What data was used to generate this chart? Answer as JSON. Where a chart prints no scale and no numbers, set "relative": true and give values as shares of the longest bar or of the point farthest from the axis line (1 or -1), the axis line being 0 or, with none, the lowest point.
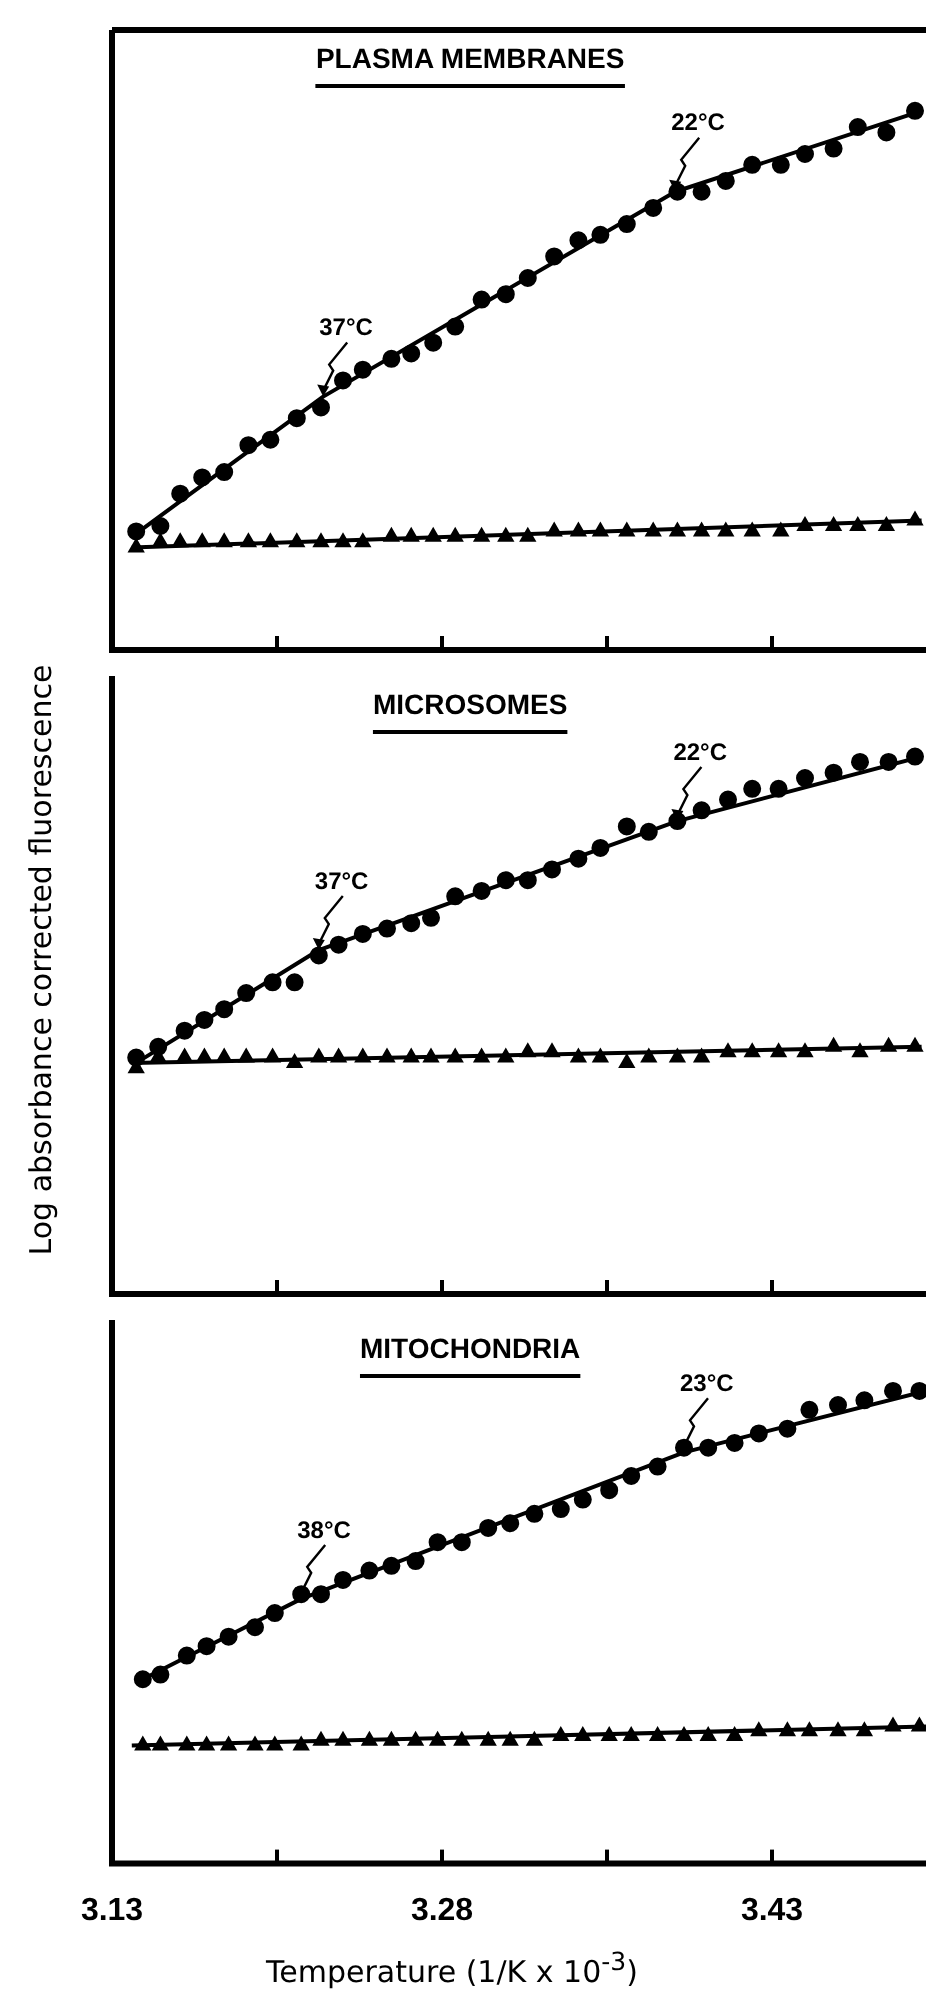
{
  "chart_data": [
    {
      "type": "scatter",
      "title": "PLASMA MEMBRANES",
      "relative": true,
      "xlim": [
        3.13,
        3.5
      ],
      "xticks": [
        3.13,
        3.205,
        3.28,
        3.355,
        3.43
      ],
      "tick_labels": false,
      "annotations": [
        {
          "text": "37°C",
          "x": 3.226,
          "y": 0.47
        },
        {
          "text": "22°C",
          "x": 3.386,
          "y": 0.85
        }
      ],
      "series": [
        {
          "type": "scatter",
          "marker": "circle",
          "color": "#000000",
          "x": [
            3.141,
            3.152,
            3.161,
            3.171,
            3.181,
            3.192,
            3.202,
            3.214,
            3.225,
            3.235,
            3.244,
            3.257,
            3.266,
            3.276,
            3.286,
            3.298,
            3.309,
            3.319,
            3.331,
            3.342,
            3.352,
            3.364,
            3.376,
            3.387,
            3.398,
            3.409,
            3.421,
            3.434,
            3.445,
            3.458,
            3.469,
            3.482,
            3.495
          ],
          "values": [
            0.22,
            0.23,
            0.29,
            0.32,
            0.33,
            0.38,
            0.39,
            0.43,
            0.45,
            0.5,
            0.52,
            0.54,
            0.55,
            0.57,
            0.6,
            0.65,
            0.66,
            0.69,
            0.73,
            0.76,
            0.77,
            0.79,
            0.82,
            0.85,
            0.85,
            0.87,
            0.9,
            0.9,
            0.92,
            0.93,
            0.97,
            0.96,
            1
          ]
        },
        {
          "type": "scatter",
          "marker": "triangle",
          "color": "#000000",
          "x": [
            3.141,
            3.152,
            3.161,
            3.171,
            3.181,
            3.192,
            3.202,
            3.214,
            3.225,
            3.235,
            3.244,
            3.257,
            3.266,
            3.276,
            3.286,
            3.298,
            3.309,
            3.319,
            3.331,
            3.342,
            3.352,
            3.364,
            3.376,
            3.387,
            3.398,
            3.409,
            3.421,
            3.434,
            3.445,
            3.458,
            3.469,
            3.482,
            3.495
          ],
          "values": [
            0.19,
            0.2,
            0.2,
            0.2,
            0.2,
            0.2,
            0.2,
            0.2,
            0.2,
            0.2,
            0.2,
            0.21,
            0.21,
            0.21,
            0.21,
            0.21,
            0.21,
            0.21,
            0.22,
            0.22,
            0.22,
            0.22,
            0.22,
            0.22,
            0.22,
            0.22,
            0.22,
            0.22,
            0.23,
            0.23,
            0.23,
            0.23,
            0.24
          ]
        },
        {
          "type": "line",
          "marker": "none",
          "color": "#000000",
          "x": [
            3.139,
            3.226,
            3.386,
            3.498
          ],
          "values": [
            0.21,
            0.47,
            0.85,
            1
          ]
        },
        {
          "type": "line",
          "marker": "none",
          "color": "#000000",
          "x": [
            3.139,
            3.498
          ],
          "values": [
            0.19,
            0.24
          ]
        }
      ]
    },
    {
      "type": "scatter",
      "title": "MICROSOMES",
      "ylabel": "Log absorbance corrected fluorescence",
      "relative": true,
      "xlim": [
        3.13,
        3.5
      ],
      "xticks": [
        3.13,
        3.205,
        3.28,
        3.355,
        3.43
      ],
      "tick_labels": false,
      "annotations": [
        {
          "text": "37°C",
          "x": 3.224,
          "y": 0.64
        },
        {
          "text": "22°C",
          "x": 3.387,
          "y": 0.88
        }
      ],
      "series": [
        {
          "type": "scatter",
          "marker": "circle",
          "color": "#000000",
          "x": [
            3.141,
            3.151,
            3.163,
            3.172,
            3.181,
            3.191,
            3.203,
            3.213,
            3.224,
            3.233,
            3.244,
            3.255,
            3.266,
            3.275,
            3.286,
            3.298,
            3.309,
            3.319,
            3.33,
            3.342,
            3.352,
            3.364,
            3.374,
            3.387,
            3.398,
            3.41,
            3.421,
            3.433,
            3.445,
            3.458,
            3.47,
            3.483,
            3.495
          ],
          "values": [
            0.44,
            0.46,
            0.49,
            0.51,
            0.53,
            0.56,
            0.58,
            0.58,
            0.63,
            0.65,
            0.67,
            0.68,
            0.69,
            0.7,
            0.74,
            0.75,
            0.77,
            0.77,
            0.79,
            0.81,
            0.83,
            0.87,
            0.86,
            0.88,
            0.9,
            0.92,
            0.94,
            0.94,
            0.96,
            0.97,
            0.99,
            0.99,
            1
          ]
        },
        {
          "type": "scatter",
          "marker": "triangle",
          "color": "#000000",
          "x": [
            3.141,
            3.151,
            3.163,
            3.172,
            3.181,
            3.191,
            3.203,
            3.213,
            3.224,
            3.233,
            3.244,
            3.255,
            3.266,
            3.275,
            3.286,
            3.298,
            3.309,
            3.319,
            3.33,
            3.342,
            3.352,
            3.364,
            3.374,
            3.387,
            3.398,
            3.41,
            3.421,
            3.433,
            3.445,
            3.458,
            3.47,
            3.483,
            3.495
          ],
          "values": [
            0.42,
            0.44,
            0.44,
            0.44,
            0.44,
            0.44,
            0.44,
            0.43,
            0.44,
            0.44,
            0.44,
            0.44,
            0.44,
            0.44,
            0.44,
            0.44,
            0.44,
            0.45,
            0.45,
            0.44,
            0.44,
            0.43,
            0.44,
            0.44,
            0.44,
            0.45,
            0.45,
            0.45,
            0.45,
            0.46,
            0.45,
            0.46,
            0.46
          ]
        },
        {
          "type": "line",
          "marker": "none",
          "color": "#000000",
          "x": [
            3.141,
            3.224,
            3.387,
            3.498
          ],
          "values": [
            0.43,
            0.64,
            0.88,
            1
          ]
        },
        {
          "type": "line",
          "marker": "none",
          "color": "#000000",
          "x": [
            3.139,
            3.498
          ],
          "values": [
            0.43,
            0.46
          ]
        }
      ]
    },
    {
      "type": "scatter",
      "title": "MITOCHONDRIA",
      "xlabel": "Temperature (1/K x 10$^{-3}$)",
      "relative": true,
      "xlim": [
        3.13,
        3.5
      ],
      "xticks": [
        3.13,
        {
          "value": 3.205,
          "label": null
        },
        3.28,
        {
          "value": 3.355,
          "label": null
        },
        3.43
      ],
      "tick_labels": "x",
      "annotations": [
        {
          "text": "38°C",
          "x": 3.216,
          "y": 0.56
        },
        {
          "text": "23°C",
          "x": 3.39,
          "y": 0.87
        }
      ],
      "series": [
        {
          "type": "scatter",
          "marker": "circle",
          "color": "#000000",
          "x": [
            3.144,
            3.152,
            3.164,
            3.173,
            3.183,
            3.195,
            3.204,
            3.216,
            3.225,
            3.235,
            3.247,
            3.257,
            3.268,
            3.278,
            3.289,
            3.301,
            3.311,
            3.322,
            3.334,
            3.344,
            3.356,
            3.366,
            3.378,
            3.39,
            3.401,
            3.413,
            3.424,
            3.437,
            3.447,
            3.46,
            3.472,
            3.485,
            3.497
          ],
          "values": [
            0.39,
            0.4,
            0.44,
            0.46,
            0.48,
            0.5,
            0.53,
            0.57,
            0.57,
            0.6,
            0.62,
            0.63,
            0.64,
            0.68,
            0.68,
            0.71,
            0.72,
            0.74,
            0.75,
            0.77,
            0.79,
            0.82,
            0.84,
            0.88,
            0.88,
            0.89,
            0.91,
            0.92,
            0.96,
            0.97,
            0.98,
            1,
            1
          ]
        },
        {
          "type": "scatter",
          "marker": "triangle",
          "color": "#000000",
          "x": [
            3.144,
            3.152,
            3.164,
            3.173,
            3.183,
            3.195,
            3.204,
            3.216,
            3.225,
            3.235,
            3.247,
            3.257,
            3.268,
            3.278,
            3.289,
            3.301,
            3.311,
            3.322,
            3.334,
            3.344,
            3.356,
            3.366,
            3.378,
            3.39,
            3.401,
            3.413,
            3.424,
            3.437,
            3.447,
            3.46,
            3.472,
            3.485,
            3.497
          ],
          "values": [
            0.25,
            0.25,
            0.25,
            0.25,
            0.25,
            0.25,
            0.25,
            0.25,
            0.26,
            0.26,
            0.26,
            0.26,
            0.26,
            0.26,
            0.26,
            0.26,
            0.26,
            0.26,
            0.27,
            0.27,
            0.27,
            0.27,
            0.27,
            0.27,
            0.27,
            0.27,
            0.28,
            0.28,
            0.28,
            0.28,
            0.28,
            0.29,
            0.29
          ]
        },
        {
          "type": "line",
          "marker": "none",
          "color": "#000000",
          "x": [
            3.144,
            3.216,
            3.39,
            3.5
          ],
          "values": [
            0.39,
            0.56,
            0.87,
            1
          ]
        },
        {
          "type": "line",
          "marker": "none",
          "color": "#000000",
          "x": [
            3.139,
            3.5
          ],
          "values": [
            0.25,
            0.29
          ]
        }
      ]
    }
  ]
}
